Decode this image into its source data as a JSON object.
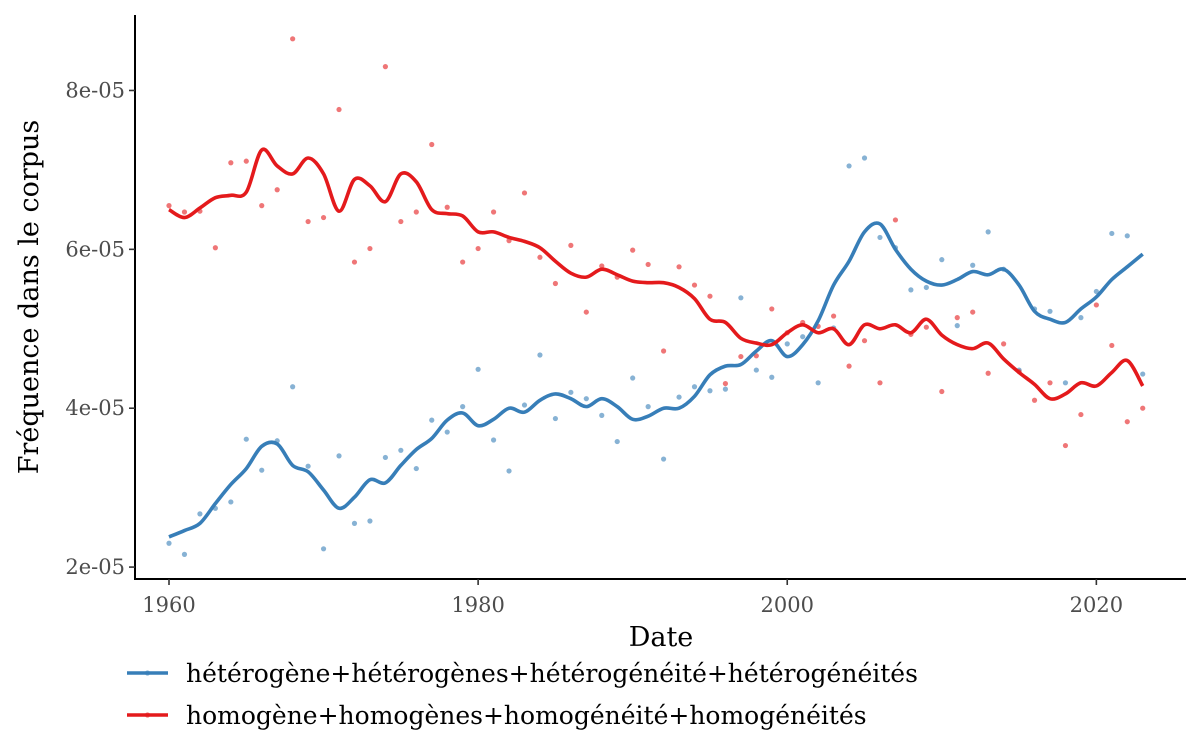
{
  "chart_data": {
    "type": "scatter",
    "xlabel": "Date",
    "ylabel": "Fréquence dans le corpus",
    "xlim": [
      1957.8,
      2025.8
    ],
    "ylim": [
      1.85e-05,
      8.95e-05
    ],
    "x_ticks": [
      1960,
      1980,
      2000,
      2020
    ],
    "x_tick_labels": [
      "1960",
      "1980",
      "2000",
      "2020"
    ],
    "y_ticks": [
      2e-05,
      4e-05,
      6e-05,
      8e-05
    ],
    "y_tick_labels": [
      "2e-05",
      "4e-05",
      "6e-05",
      "8e-05"
    ],
    "grid": false,
    "legend_position": "bottom",
    "series": [
      {
        "name": "hétérogène+hétérogènes+hétérogénéité+hétérogénéités",
        "color": "#377EB8",
        "points": [
          [
            1960,
            2.3e-05
          ],
          [
            1961,
            2.16e-05
          ],
          [
            1962,
            2.67e-05
          ],
          [
            1963,
            2.74e-05
          ],
          [
            1964,
            2.82e-05
          ],
          [
            1965,
            3.61e-05
          ],
          [
            1966,
            3.22e-05
          ],
          [
            1967,
            3.59e-05
          ],
          [
            1968,
            4.27e-05
          ],
          [
            1969,
            3.27e-05
          ],
          [
            1970,
            2.23e-05
          ],
          [
            1971,
            3.4e-05
          ],
          [
            1972,
            2.55e-05
          ],
          [
            1973,
            2.58e-05
          ],
          [
            1974,
            3.38e-05
          ],
          [
            1975,
            3.47e-05
          ],
          [
            1976,
            3.24e-05
          ],
          [
            1977,
            3.85e-05
          ],
          [
            1978,
            3.7e-05
          ],
          [
            1979,
            4.02e-05
          ],
          [
            1980,
            4.49e-05
          ],
          [
            1981,
            3.6e-05
          ],
          [
            1982,
            3.21e-05
          ],
          [
            1983,
            4.04e-05
          ],
          [
            1984,
            4.67e-05
          ],
          [
            1985,
            3.87e-05
          ],
          [
            1986,
            4.2e-05
          ],
          [
            1987,
            4.12e-05
          ],
          [
            1988,
            3.91e-05
          ],
          [
            1989,
            3.58e-05
          ],
          [
            1990,
            4.38e-05
          ],
          [
            1991,
            4.02e-05
          ],
          [
            1992,
            3.36e-05
          ],
          [
            1993,
            4.14e-05
          ],
          [
            1994,
            4.27e-05
          ],
          [
            1995,
            4.22e-05
          ],
          [
            1996,
            4.24e-05
          ],
          [
            1997,
            5.39e-05
          ],
          [
            1998,
            4.48e-05
          ],
          [
            1999,
            4.39e-05
          ],
          [
            2000,
            4.81e-05
          ],
          [
            2001,
            4.9e-05
          ],
          [
            2002,
            4.32e-05
          ],
          [
            2003,
            5.01e-05
          ],
          [
            2004,
            7.05e-05
          ],
          [
            2005,
            7.15e-05
          ],
          [
            2006,
            6.15e-05
          ],
          [
            2007,
            6.02e-05
          ],
          [
            2008,
            5.49e-05
          ],
          [
            2009,
            5.52e-05
          ],
          [
            2010,
            5.87e-05
          ],
          [
            2011,
            5.04e-05
          ],
          [
            2012,
            5.8e-05
          ],
          [
            2013,
            6.22e-05
          ],
          [
            2014,
            5.75e-05
          ],
          [
            2015,
            4.48e-05
          ],
          [
            2016,
            5.25e-05
          ],
          [
            2017,
            5.22e-05
          ],
          [
            2018,
            4.32e-05
          ],
          [
            2019,
            5.14e-05
          ],
          [
            2020,
            5.47e-05
          ],
          [
            2021,
            6.2e-05
          ],
          [
            2022,
            6.17e-05
          ],
          [
            2023,
            4.43e-05
          ]
        ],
        "smooth": [
          [
            1960,
            2.38e-05
          ],
          [
            1961,
            2.46e-05
          ],
          [
            1962,
            2.55e-05
          ],
          [
            1963,
            2.8e-05
          ],
          [
            1964,
            3.04e-05
          ],
          [
            1965,
            3.24e-05
          ],
          [
            1966,
            3.52e-05
          ],
          [
            1967,
            3.55e-05
          ],
          [
            1968,
            3.28e-05
          ],
          [
            1969,
            3.2e-05
          ],
          [
            1970,
            2.97e-05
          ],
          [
            1971,
            2.74e-05
          ],
          [
            1972,
            2.88e-05
          ],
          [
            1973,
            3.1e-05
          ],
          [
            1974,
            3.06e-05
          ],
          [
            1975,
            3.28e-05
          ],
          [
            1976,
            3.48e-05
          ],
          [
            1977,
            3.62e-05
          ],
          [
            1978,
            3.85e-05
          ],
          [
            1979,
            3.94e-05
          ],
          [
            1980,
            3.78e-05
          ],
          [
            1981,
            3.86e-05
          ],
          [
            1982,
            4e-05
          ],
          [
            1983,
            3.95e-05
          ],
          [
            1984,
            4.1e-05
          ],
          [
            1985,
            4.18e-05
          ],
          [
            1986,
            4.12e-05
          ],
          [
            1987,
            4.02e-05
          ],
          [
            1988,
            4.12e-05
          ],
          [
            1989,
            4.02e-05
          ],
          [
            1990,
            3.86e-05
          ],
          [
            1991,
            3.9e-05
          ],
          [
            1992,
            4e-05
          ],
          [
            1993,
            4e-05
          ],
          [
            1994,
            4.15e-05
          ],
          [
            1995,
            4.42e-05
          ],
          [
            1996,
            4.53e-05
          ],
          [
            1997,
            4.55e-05
          ],
          [
            1998,
            4.72e-05
          ],
          [
            1999,
            4.85e-05
          ],
          [
            2000,
            4.65e-05
          ],
          [
            2001,
            4.8e-05
          ],
          [
            2002,
            5.1e-05
          ],
          [
            2003,
            5.55e-05
          ],
          [
            2004,
            5.85e-05
          ],
          [
            2005,
            6.22e-05
          ],
          [
            2006,
            6.32e-05
          ],
          [
            2007,
            6e-05
          ],
          [
            2008,
            5.75e-05
          ],
          [
            2009,
            5.6e-05
          ],
          [
            2010,
            5.55e-05
          ],
          [
            2011,
            5.62e-05
          ],
          [
            2012,
            5.72e-05
          ],
          [
            2013,
            5.68e-05
          ],
          [
            2014,
            5.75e-05
          ],
          [
            2015,
            5.55e-05
          ],
          [
            2016,
            5.22e-05
          ],
          [
            2017,
            5.12e-05
          ],
          [
            2018,
            5.08e-05
          ],
          [
            2019,
            5.25e-05
          ],
          [
            2020,
            5.4e-05
          ],
          [
            2021,
            5.62e-05
          ],
          [
            2022,
            5.78e-05
          ],
          [
            2023,
            5.94e-05
          ]
        ]
      },
      {
        "name": "homogène+homogènes+homogénéité+homogénéités",
        "color": "#E41A1C",
        "points": [
          [
            1960,
            6.55e-05
          ],
          [
            1961,
            6.47e-05
          ],
          [
            1962,
            6.48e-05
          ],
          [
            1963,
            6.02e-05
          ],
          [
            1964,
            7.09e-05
          ],
          [
            1965,
            7.11e-05
          ],
          [
            1966,
            6.55e-05
          ],
          [
            1967,
            6.75e-05
          ],
          [
            1968,
            8.65e-05
          ],
          [
            1969,
            6.35e-05
          ],
          [
            1970,
            6.4e-05
          ],
          [
            1971,
            7.76e-05
          ],
          [
            1972,
            5.84e-05
          ],
          [
            1973,
            6.01e-05
          ],
          [
            1974,
            8.3e-05
          ],
          [
            1975,
            6.35e-05
          ],
          [
            1976,
            6.47e-05
          ],
          [
            1977,
            7.32e-05
          ],
          [
            1978,
            6.53e-05
          ],
          [
            1979,
            5.84e-05
          ],
          [
            1980,
            6.01e-05
          ],
          [
            1981,
            6.47e-05
          ],
          [
            1982,
            6.11e-05
          ],
          [
            1983,
            6.71e-05
          ],
          [
            1984,
            5.9e-05
          ],
          [
            1985,
            5.57e-05
          ],
          [
            1986,
            6.05e-05
          ],
          [
            1987,
            5.21e-05
          ],
          [
            1988,
            5.79e-05
          ],
          [
            1989,
            5.65e-05
          ],
          [
            1990,
            5.99e-05
          ],
          [
            1991,
            5.81e-05
          ],
          [
            1992,
            4.72e-05
          ],
          [
            1993,
            5.78e-05
          ],
          [
            1994,
            5.55e-05
          ],
          [
            1995,
            5.41e-05
          ],
          [
            1996,
            4.31e-05
          ],
          [
            1997,
            4.65e-05
          ],
          [
            1998,
            4.66e-05
          ],
          [
            1999,
            5.25e-05
          ],
          [
            2000,
            4.95e-05
          ],
          [
            2001,
            5.08e-05
          ],
          [
            2002,
            5.03e-05
          ],
          [
            2003,
            5.16e-05
          ],
          [
            2004,
            4.53e-05
          ],
          [
            2005,
            4.85e-05
          ],
          [
            2006,
            4.32e-05
          ],
          [
            2007,
            6.37e-05
          ],
          [
            2008,
            4.93e-05
          ],
          [
            2009,
            5.02e-05
          ],
          [
            2010,
            4.21e-05
          ],
          [
            2011,
            5.14e-05
          ],
          [
            2012,
            5.21e-05
          ],
          [
            2013,
            4.44e-05
          ],
          [
            2014,
            4.81e-05
          ],
          [
            2015,
            4.46e-05
          ],
          [
            2016,
            4.1e-05
          ],
          [
            2017,
            4.32e-05
          ],
          [
            2018,
            3.53e-05
          ],
          [
            2019,
            3.92e-05
          ],
          [
            2020,
            5.3e-05
          ],
          [
            2021,
            4.79e-05
          ],
          [
            2022,
            3.83e-05
          ],
          [
            2023,
            4e-05
          ]
        ],
        "smooth": [
          [
            1960,
            6.5e-05
          ],
          [
            1961,
            6.4e-05
          ],
          [
            1962,
            6.52e-05
          ],
          [
            1963,
            6.65e-05
          ],
          [
            1964,
            6.68e-05
          ],
          [
            1965,
            6.72e-05
          ],
          [
            1966,
            7.25e-05
          ],
          [
            1967,
            7.05e-05
          ],
          [
            1968,
            6.95e-05
          ],
          [
            1969,
            7.15e-05
          ],
          [
            1970,
            6.95e-05
          ],
          [
            1971,
            6.48e-05
          ],
          [
            1972,
            6.88e-05
          ],
          [
            1973,
            6.8e-05
          ],
          [
            1974,
            6.6e-05
          ],
          [
            1975,
            6.95e-05
          ],
          [
            1976,
            6.85e-05
          ],
          [
            1977,
            6.5e-05
          ],
          [
            1978,
            6.45e-05
          ],
          [
            1979,
            6.42e-05
          ],
          [
            1980,
            6.22e-05
          ],
          [
            1981,
            6.22e-05
          ],
          [
            1982,
            6.15e-05
          ],
          [
            1983,
            6.1e-05
          ],
          [
            1984,
            6.02e-05
          ],
          [
            1985,
            5.85e-05
          ],
          [
            1986,
            5.7e-05
          ],
          [
            1987,
            5.65e-05
          ],
          [
            1988,
            5.75e-05
          ],
          [
            1989,
            5.68e-05
          ],
          [
            1990,
            5.6e-05
          ],
          [
            1991,
            5.58e-05
          ],
          [
            1992,
            5.58e-05
          ],
          [
            1993,
            5.52e-05
          ],
          [
            1994,
            5.38e-05
          ],
          [
            1995,
            5.12e-05
          ],
          [
            1996,
            5.08e-05
          ],
          [
            1997,
            4.88e-05
          ],
          [
            1998,
            4.82e-05
          ],
          [
            1999,
            4.8e-05
          ],
          [
            2000,
            4.95e-05
          ],
          [
            2001,
            5.05e-05
          ],
          [
            2002,
            4.95e-05
          ],
          [
            2003,
            5e-05
          ],
          [
            2004,
            4.8e-05
          ],
          [
            2005,
            5.05e-05
          ],
          [
            2006,
            5e-05
          ],
          [
            2007,
            5.05e-05
          ],
          [
            2008,
            4.95e-05
          ],
          [
            2009,
            5.12e-05
          ],
          [
            2010,
            4.92e-05
          ],
          [
            2011,
            4.8e-05
          ],
          [
            2012,
            4.75e-05
          ],
          [
            2013,
            4.82e-05
          ],
          [
            2014,
            4.62e-05
          ],
          [
            2015,
            4.45e-05
          ],
          [
            2016,
            4.3e-05
          ],
          [
            2017,
            4.12e-05
          ],
          [
            2018,
            4.18e-05
          ],
          [
            2019,
            4.32e-05
          ],
          [
            2020,
            4.28e-05
          ],
          [
            2021,
            4.45e-05
          ],
          [
            2022,
            4.6e-05
          ],
          [
            2023,
            4.28e-05
          ]
        ]
      }
    ]
  }
}
